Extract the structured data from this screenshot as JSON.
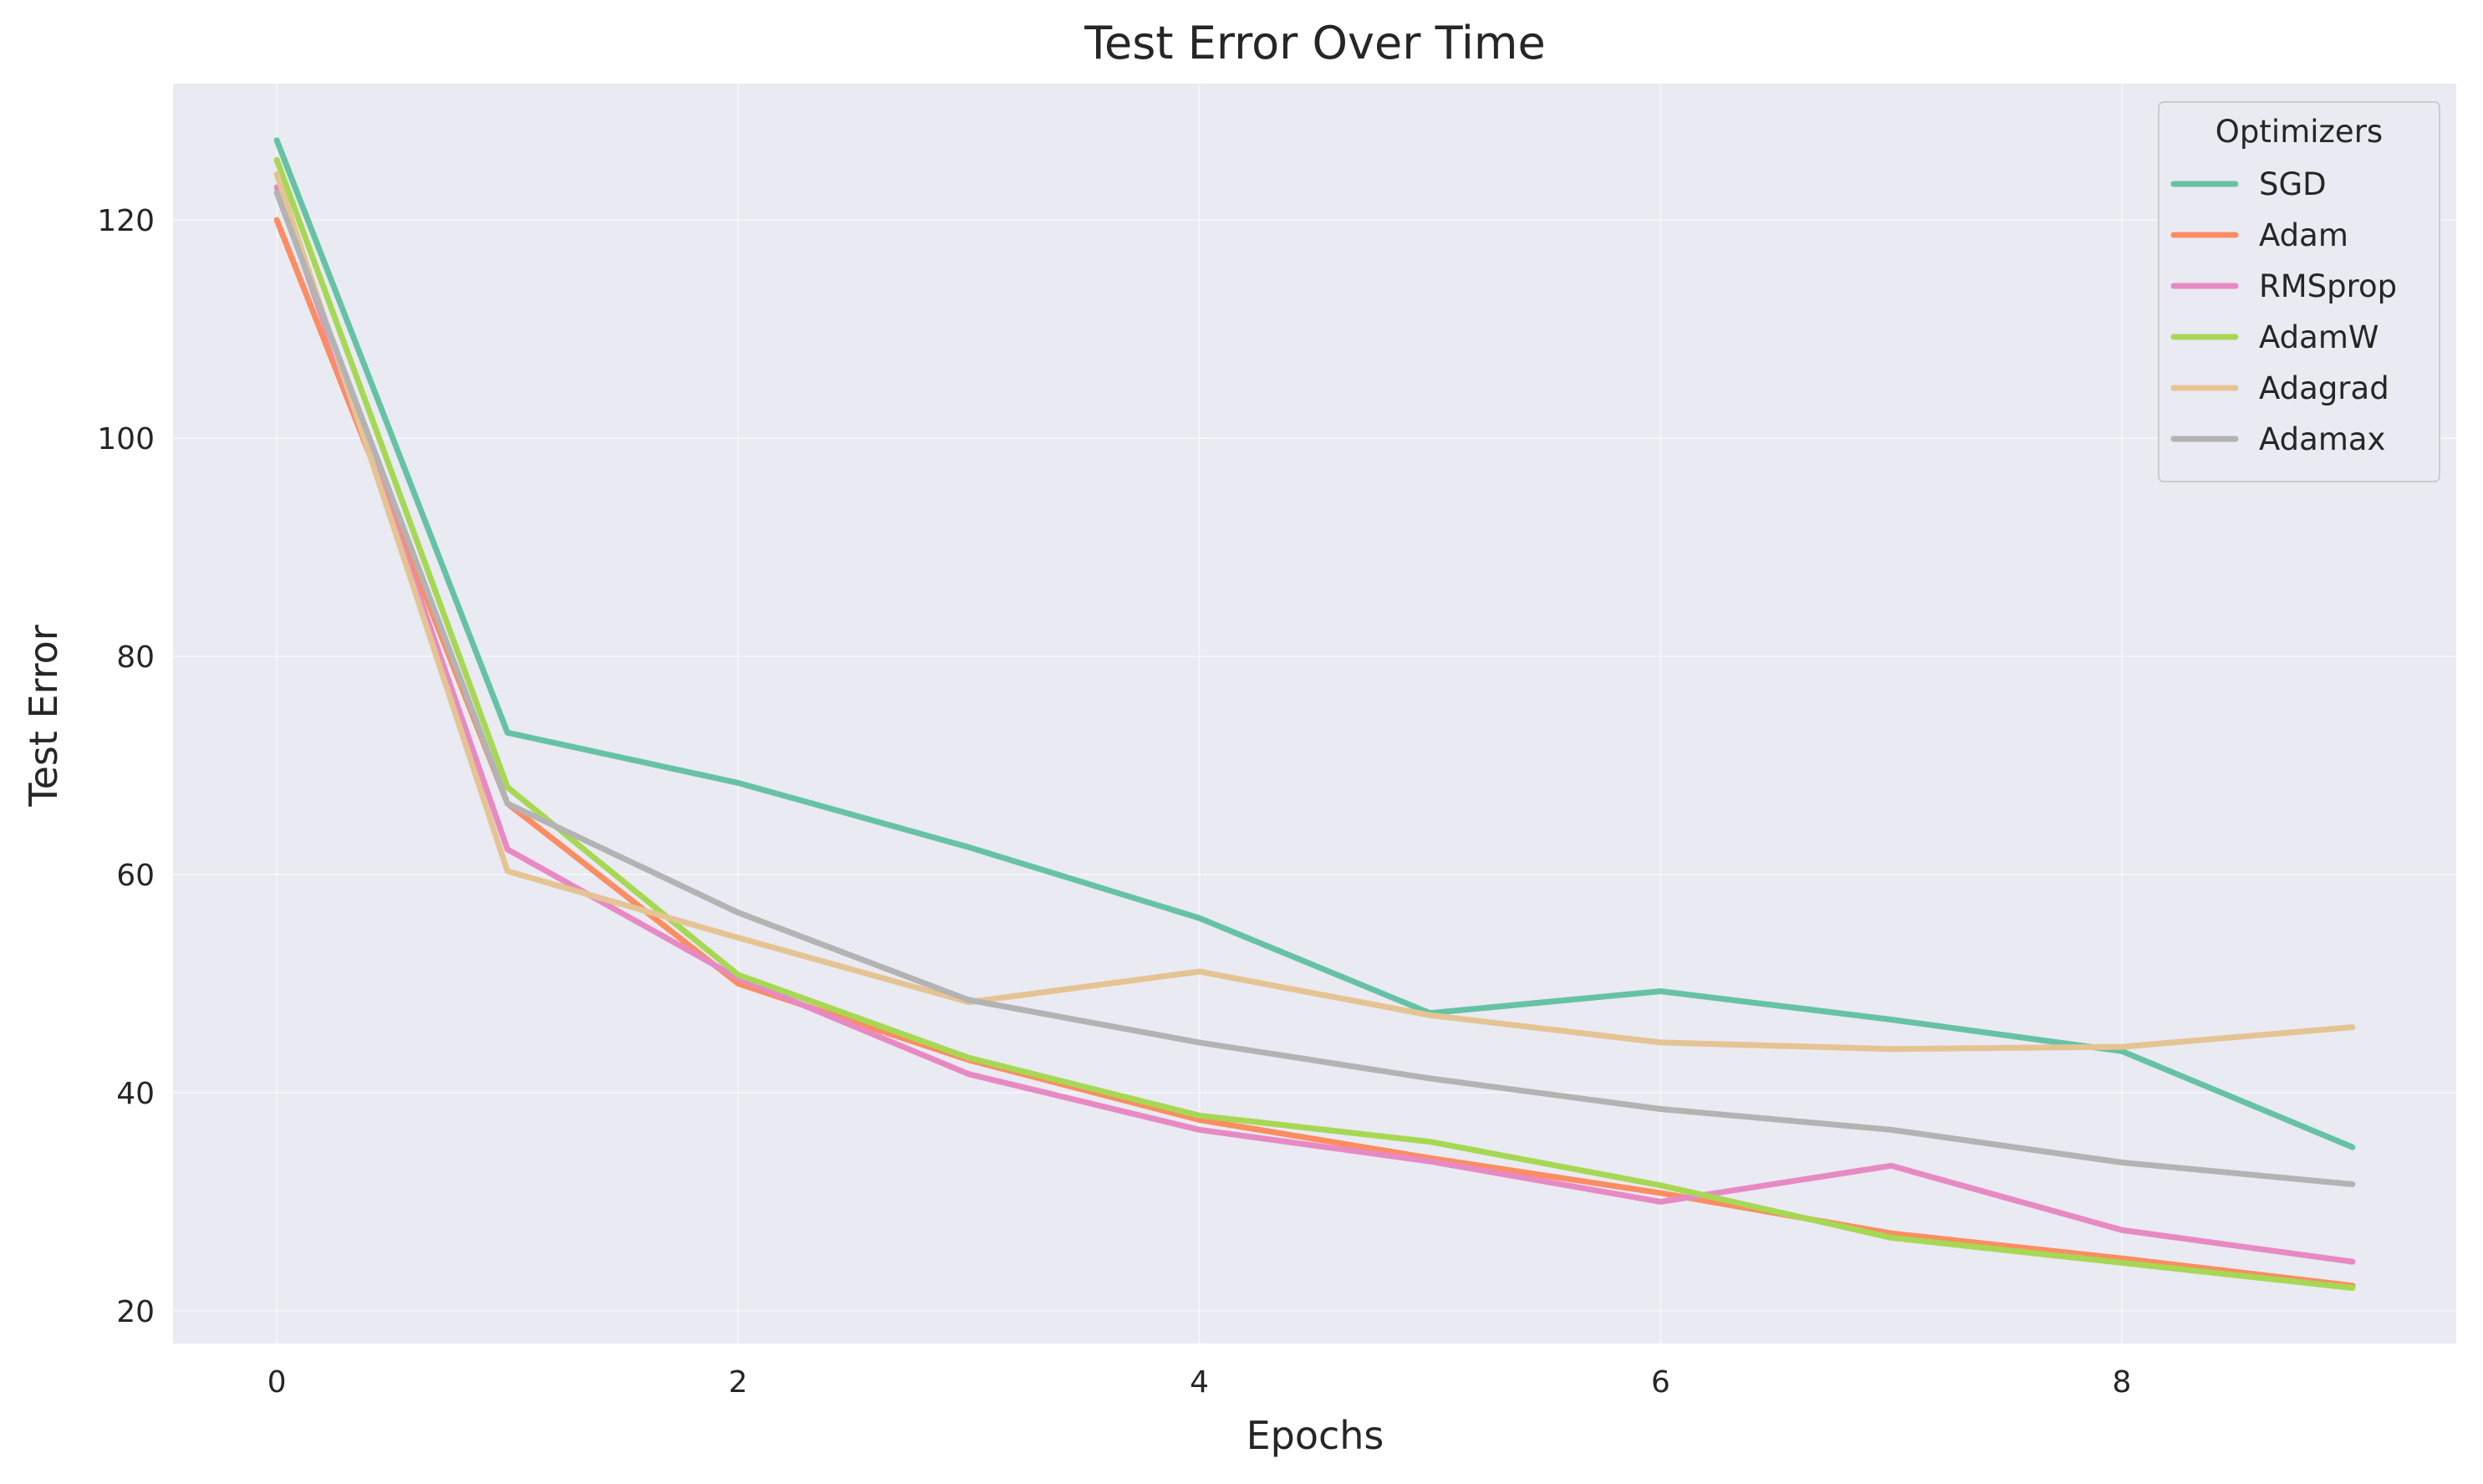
{
  "chart_data": {
    "type": "line",
    "title": "Test Error Over Time",
    "xlabel": "Epochs",
    "ylabel": "Test Error",
    "x": [
      0,
      1,
      2,
      3,
      4,
      5,
      6,
      7,
      8,
      9
    ],
    "xlim": [
      -0.45,
      9.45
    ],
    "ylim": [
      17.0,
      132.5
    ],
    "xticks": [
      0,
      2,
      4,
      6,
      8
    ],
    "yticks": [
      20,
      40,
      60,
      80,
      100,
      120
    ],
    "grid": true,
    "legend": {
      "title": "Optimizers",
      "placement": "top-right"
    },
    "series": [
      {
        "name": "SGD",
        "color": "#66c2a5",
        "values": [
          127.3,
          73.0,
          68.4,
          62.5,
          56.0,
          47.3,
          49.3,
          46.7,
          43.8,
          35.0
        ]
      },
      {
        "name": "Adam",
        "color": "#fc8d62",
        "values": [
          120.0,
          66.5,
          50.0,
          43.0,
          37.5,
          34.0,
          30.8,
          27.1,
          24.8,
          22.3
        ]
      },
      {
        "name": "RMSprop",
        "color": "#e78ac3",
        "values": [
          123.0,
          62.3,
          50.5,
          41.7,
          36.6,
          33.7,
          30.0,
          33.3,
          27.4,
          24.5
        ]
      },
      {
        "name": "AdamW",
        "color": "#a6d854",
        "values": [
          125.5,
          68.0,
          50.8,
          43.2,
          37.9,
          35.5,
          31.5,
          26.7,
          24.4,
          22.1
        ]
      },
      {
        "name": "Adagrad",
        "color": "#e5c494",
        "values": [
          124.2,
          60.3,
          54.2,
          48.3,
          51.1,
          47.1,
          44.6,
          44.0,
          44.2,
          46.0
        ]
      },
      {
        "name": "Adamax",
        "color": "#b3b3b3",
        "values": [
          122.5,
          66.5,
          56.5,
          48.5,
          44.6,
          41.3,
          38.5,
          36.6,
          33.6,
          31.6
        ]
      }
    ]
  }
}
